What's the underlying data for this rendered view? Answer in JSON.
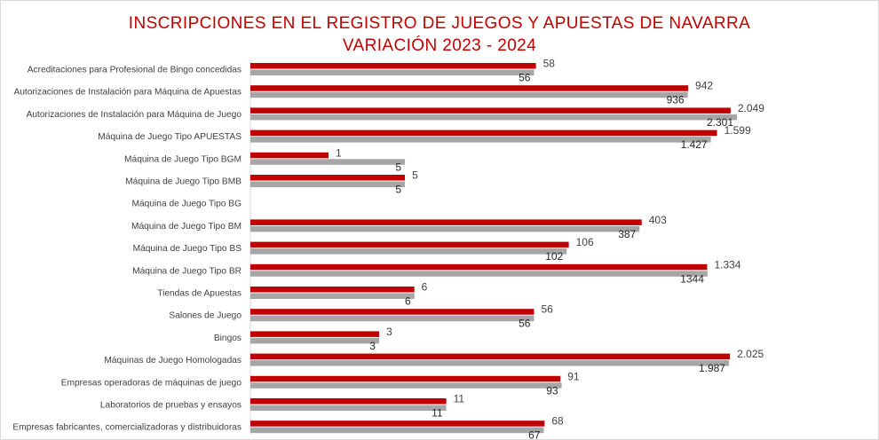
{
  "chart_data": {
    "type": "bar",
    "orientation": "horizontal",
    "title": "INSCRIPCIONES EN EL REGISTRO DE JUEGOS Y APUESTAS DE NAVARRA",
    "subtitle": "VARIACIÓN 2023 - 2024",
    "categories": [
      "Acreditaciones para Profesional de Bingo concedidas",
      "Autorizaciones de Instalación para Máquina de Apuestas",
      "Autorizaciones de Instalación para Máquina de Juego",
      "Máquina de Juego Tipo APUESTAS",
      "Máquina de Juego Tipo BGM",
      "Máquina de Juego Tipo BMB",
      "Máquina de Juego Tipo BG",
      "Máquina de Juego Tipo BM",
      "Máquina de Juego Tipo BS",
      "Máquina de Juego Tipo BR",
      "Tiendas de Apuestas",
      "Salones de Juego",
      "Bingos",
      "Máquinas de Juego Homologadas",
      "Empresas operadoras de máquinas de juego",
      "Laboratorios de pruebas y ensayos",
      "Empresas fabricantes, comercializadoras y distribuidoras"
    ],
    "series": [
      {
        "color": "#c00000",
        "values": [
          58,
          942,
          2049,
          1599,
          1,
          5,
          null,
          403,
          106,
          1334,
          6,
          56,
          3,
          2025,
          91,
          11,
          68
        ],
        "labels": [
          "58",
          "942",
          "2.049",
          "1.599",
          "1",
          "5",
          "",
          "403",
          "106",
          "1.334",
          "6",
          "56",
          "3",
          "2.025",
          "91",
          "11",
          "68"
        ]
      },
      {
        "color": "#a6a6a6",
        "values": [
          56,
          936,
          2301,
          1427,
          5,
          5,
          null,
          387,
          102,
          1344,
          6,
          56,
          3,
          1987,
          93,
          11,
          67
        ],
        "labels": [
          "56",
          "936",
          "2.301",
          "1.427",
          "5",
          "5",
          "",
          "387",
          "102",
          "1344",
          "6",
          "56",
          "3",
          "1.987",
          "93",
          "11",
          "67"
        ]
      }
    ],
    "scale": "symlog",
    "legend": "none",
    "grid": false
  }
}
